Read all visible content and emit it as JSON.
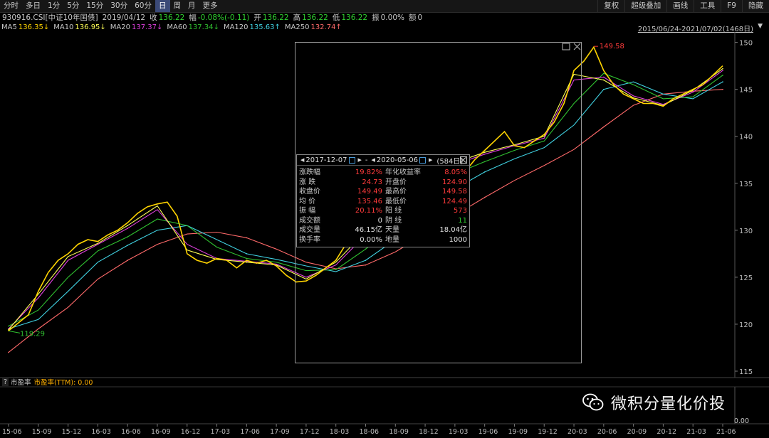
{
  "toolbar": {
    "periods": [
      "分时",
      "多日",
      "1分",
      "5分",
      "15分",
      "30分",
      "60分",
      "日",
      "周",
      "月",
      "更多"
    ],
    "active_period": "日",
    "tools": [
      "复权",
      "超级叠加",
      "画线",
      "工具",
      "F9",
      "隐藏"
    ]
  },
  "info": {
    "code": "930916.CSI[中证10年国债]",
    "date": "2019/04/12",
    "close_label": "收",
    "close": "136.22",
    "change_label": "幅",
    "change": "-0.08%(-0.11)",
    "open_label": "开",
    "open": "136.22",
    "high_label": "高",
    "high": "136.22",
    "low_label": "低",
    "low": "136.22",
    "amp_label": "振",
    "amp": "0.00%",
    "amount_label": "额",
    "amount": "0"
  },
  "ma": [
    {
      "name": "MA5",
      "value": "136.35↓",
      "color": "#ffd400"
    },
    {
      "name": "MA10",
      "value": "136.95↓",
      "color": "#ffff55"
    },
    {
      "name": "MA20",
      "value": "137.37↓",
      "color": "#e040e0"
    },
    {
      "name": "MA60",
      "value": "137.34↓",
      "color": "#30c030"
    },
    {
      "name": "MA120",
      "value": "135.63↑",
      "color": "#40d0e0"
    },
    {
      "name": "MA250",
      "value": "132.74↑",
      "color": "#ff6a6a"
    }
  ],
  "range_label": "2015/06/24-2021/07/02(1468日)",
  "popup": {
    "start": "2017-12-07",
    "sep": "-",
    "end": "2020-05-06",
    "days": "(584日)",
    "left": [
      {
        "label": "涨跌幅",
        "value": "19.82%",
        "color": "#ff3b3b"
      },
      {
        "label": "涨  跌",
        "value": "24.73",
        "color": "#ff3b3b"
      },
      {
        "label": "收盘价",
        "value": "149.49",
        "color": "#ff3b3b"
      },
      {
        "label": "均  价",
        "value": "135.46",
        "color": "#ff3b3b"
      },
      {
        "label": "振  幅",
        "value": "20.11%",
        "color": "#ff3b3b"
      },
      {
        "label": "成交额",
        "value": "0",
        "color": "#e0e0e0"
      },
      {
        "label": "成交量",
        "value": "46.15亿",
        "color": "#e0e0e0"
      },
      {
        "label": "换手率",
        "value": "0.00%",
        "color": "#e0e0e0"
      }
    ],
    "right": [
      {
        "label": "年化收益率",
        "value": "8.05%",
        "color": "#ff3b3b"
      },
      {
        "label": "开盘价",
        "value": "124.90",
        "color": "#ff3b3b"
      },
      {
        "label": "最高价",
        "value": "149.58",
        "color": "#ff3b3b"
      },
      {
        "label": "最低价",
        "value": "124.49",
        "color": "#ff3b3b"
      },
      {
        "label": "阳  线",
        "value": "573",
        "color": "#ff3b3b"
      },
      {
        "label": "阴  线",
        "value": "11",
        "color": "#30d030"
      },
      {
        "label": "天量",
        "value": "18.04亿",
        "color": "#e0e0e0"
      },
      {
        "label": "地量",
        "value": "1000",
        "color": "#e0e0e0"
      }
    ]
  },
  "subchart": {
    "qmark": "?",
    "name": "市盈率",
    "series_label": "市盈率(TTM): 0.00",
    "zero_value": "0.00"
  },
  "watermark": "微积分量化价投",
  "chart_data": {
    "type": "line",
    "title": "",
    "xlabel": "",
    "ylabel": "",
    "ylim": [
      115,
      150.5
    ],
    "yticks": [
      115,
      120,
      125,
      130,
      135,
      140,
      145,
      150
    ],
    "x_tick_labels": [
      "15-06",
      "15-09",
      "15-12",
      "16-03",
      "16-06",
      "16-09",
      "16-12",
      "17-03",
      "17-06",
      "17-09",
      "17-12",
      "18-03",
      "18-06",
      "18-09",
      "18-12",
      "19-03",
      "19-06",
      "19-09",
      "19-12",
      "20-03",
      "20-06",
      "20-09",
      "20-12",
      "21-03",
      "21-06"
    ],
    "annotations": [
      {
        "text": "149.58",
        "x": "20-05",
        "y": 149.58,
        "color": "#ff3b3b"
      },
      {
        "text": "119.29",
        "x": "15-06",
        "y": 119.29,
        "color": "#30c030"
      }
    ],
    "grid": false,
    "series": [
      {
        "name": "MA5",
        "color": "#ffd400",
        "x": [
          "15-06",
          "15-08",
          "15-09",
          "15-10",
          "15-11",
          "15-12",
          "16-01",
          "16-02",
          "16-03",
          "16-04",
          "16-05",
          "16-06",
          "16-07",
          "16-08",
          "16-09",
          "16-10",
          "16-11",
          "16-12",
          "17-01",
          "17-02",
          "17-03",
          "17-04",
          "17-05",
          "17-06",
          "17-07",
          "17-08",
          "17-09",
          "17-10",
          "17-11",
          "17-12",
          "18-01",
          "18-02",
          "18-03",
          "18-04",
          "18-05",
          "18-06",
          "18-07",
          "18-08",
          "18-09",
          "18-10",
          "18-11",
          "18-12",
          "19-01",
          "19-02",
          "19-03",
          "19-04",
          "19-05",
          "19-06",
          "19-07",
          "19-08",
          "19-09",
          "19-10",
          "19-11",
          "19-12",
          "20-01",
          "20-02",
          "20-03",
          "20-04",
          "20-05",
          "20-06",
          "20-07",
          "20-08",
          "20-09",
          "20-10",
          "20-11",
          "20-12",
          "21-01",
          "21-02",
          "21-03",
          "21-04",
          "21-05",
          "21-06"
        ],
        "values": [
          119.3,
          121.0,
          123.5,
          125.5,
          126.8,
          127.5,
          128.5,
          129.0,
          128.8,
          129.5,
          130.0,
          130.8,
          131.8,
          132.5,
          132.8,
          133.0,
          131.5,
          127.5,
          126.8,
          126.5,
          127.0,
          126.8,
          126.0,
          126.8,
          126.5,
          126.8,
          126.2,
          125.2,
          124.5,
          124.6,
          125.2,
          126.0,
          126.8,
          128.5,
          129.5,
          130.2,
          131.0,
          131.5,
          132.0,
          133.5,
          134.5,
          135.5,
          136.5,
          137.2,
          137.5,
          136.2,
          137.5,
          138.5,
          139.5,
          140.5,
          139.0,
          138.8,
          139.5,
          140.2,
          141.5,
          143.5,
          147.0,
          148.0,
          149.49,
          147.0,
          145.5,
          144.5,
          144.0,
          143.5,
          143.5,
          143.2,
          144.0,
          144.5,
          145.0,
          145.5,
          146.5,
          147.5
        ]
      },
      {
        "name": "MA10",
        "color": "#ffff55",
        "x": [
          "15-06",
          "15-09",
          "15-12",
          "16-03",
          "16-06",
          "16-09",
          "16-12",
          "17-03",
          "17-06",
          "17-09",
          "17-12",
          "18-03",
          "18-06",
          "18-09",
          "18-12",
          "19-03",
          "19-06",
          "19-09",
          "19-12",
          "20-03",
          "20-06",
          "20-09",
          "20-12",
          "21-03",
          "21-06"
        ],
        "values": [
          119.4,
          123.2,
          127.2,
          128.6,
          130.5,
          132.6,
          127.9,
          126.9,
          126.6,
          126.3,
          124.8,
          126.6,
          129.9,
          131.8,
          135.3,
          137.2,
          138.3,
          139.1,
          140.0,
          146.6,
          146.0,
          144.1,
          143.3,
          144.9,
          147.2
        ]
      },
      {
        "name": "MA20",
        "color": "#e040e0",
        "x": [
          "15-06",
          "15-09",
          "15-12",
          "16-03",
          "16-06",
          "16-09",
          "16-12",
          "17-03",
          "17-06",
          "17-09",
          "17-12",
          "18-03",
          "18-06",
          "18-09",
          "18-12",
          "19-03",
          "19-06",
          "19-09",
          "19-12",
          "20-03",
          "20-06",
          "20-09",
          "20-12",
          "21-03",
          "21-06"
        ],
        "values": [
          119.5,
          122.8,
          126.8,
          128.5,
          130.2,
          132.2,
          128.5,
          127.0,
          126.7,
          126.4,
          125.0,
          126.3,
          129.5,
          131.6,
          135.0,
          137.0,
          138.1,
          139.0,
          139.8,
          146.0,
          146.3,
          144.3,
          143.4,
          144.7,
          147.0
        ]
      },
      {
        "name": "MA60",
        "color": "#30c030",
        "x": [
          "15-06",
          "15-09",
          "15-12",
          "16-03",
          "16-06",
          "16-09",
          "16-12",
          "17-03",
          "17-06",
          "17-09",
          "17-12",
          "18-03",
          "18-06",
          "18-09",
          "18-12",
          "19-03",
          "19-06",
          "19-09",
          "19-12",
          "20-03",
          "20-06",
          "20-09",
          "20-12",
          "21-03",
          "21-06"
        ],
        "values": [
          119.8,
          121.5,
          125.0,
          127.8,
          129.3,
          131.2,
          130.5,
          128.2,
          127.0,
          126.6,
          125.7,
          125.8,
          128.0,
          130.6,
          133.5,
          136.0,
          137.3,
          138.5,
          139.5,
          143.5,
          146.7,
          145.5,
          144.0,
          144.2,
          146.5
        ]
      },
      {
        "name": "MA120",
        "color": "#40d0e0",
        "x": [
          "15-06",
          "15-09",
          "15-12",
          "16-03",
          "16-06",
          "16-09",
          "16-12",
          "17-03",
          "17-06",
          "17-09",
          "17-12",
          "18-03",
          "18-06",
          "18-09",
          "18-12",
          "19-03",
          "19-06",
          "19-09",
          "19-12",
          "20-03",
          "20-06",
          "20-09",
          "20-12",
          "21-03",
          "21-06"
        ],
        "values": [
          119.5,
          120.5,
          123.5,
          126.6,
          128.4,
          130.0,
          130.5,
          129.0,
          127.5,
          126.9,
          126.2,
          125.6,
          126.8,
          129.0,
          131.8,
          134.4,
          136.2,
          137.6,
          138.8,
          141.2,
          145.0,
          145.8,
          144.5,
          144.0,
          145.8
        ]
      },
      {
        "name": "MA250",
        "color": "#ff6a6a",
        "x": [
          "15-06",
          "15-09",
          "15-12",
          "16-03",
          "16-06",
          "16-09",
          "16-12",
          "17-03",
          "17-06",
          "17-09",
          "17-12",
          "18-03",
          "18-06",
          "18-09",
          "18-12",
          "19-03",
          "19-06",
          "19-09",
          "19-12",
          "20-03",
          "20-06",
          "20-09",
          "20-12",
          "21-03",
          "21-06"
        ],
        "values": [
          117.0,
          119.5,
          121.8,
          124.8,
          126.8,
          128.5,
          129.6,
          129.8,
          129.2,
          128.0,
          126.6,
          125.9,
          126.3,
          127.7,
          129.6,
          131.6,
          133.5,
          135.3,
          136.9,
          138.6,
          141.0,
          143.3,
          144.5,
          144.8,
          145.0
        ]
      }
    ]
  }
}
